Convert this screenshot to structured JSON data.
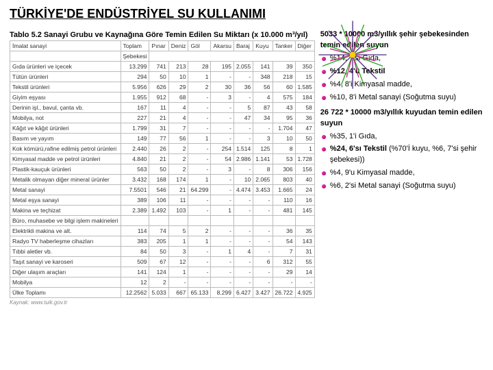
{
  "title": "TÜRKİYE'DE ENDÜSTRİYEL SU KULLANIMI",
  "table_caption": "Tablo 5.2 Sanayi Grubu ve Kaynağına Göre Temin Edilen Su Miktarı (x 10.000 m³/yıl)",
  "columns": [
    "İmalat sanayi",
    "Toplam",
    "Pınar",
    "Deniz",
    "Göl",
    "Akarsu",
    "Baraj",
    "Kuyu",
    "Tanker",
    "Diğer"
  ],
  "subhead": "Şebekesi",
  "rows": [
    [
      "Gıda ürünleri ve içecek",
      "13.299",
      "741",
      "213",
      "28",
      "195",
      "2.055",
      "141",
      "39",
      "350"
    ],
    [
      "Tütün ürünleri",
      "294",
      "50",
      "10",
      "1",
      "-",
      "-",
      "348",
      "218",
      "15"
    ],
    [
      "Tekstil ürünleri",
      "5.956",
      "626",
      "29",
      "2",
      "30",
      "36",
      "56",
      "60",
      "1.585"
    ],
    [
      "Giyim eşyası",
      "1.955",
      "912",
      "68",
      "-",
      "3",
      "-",
      "4",
      "575",
      "184"
    ],
    [
      "Derinin işl., bavul, çanta vb.",
      "167",
      "11",
      "4",
      "-",
      "-",
      "5",
      "87",
      "43",
      "58"
    ],
    [
      "Mobilya, not",
      "227",
      "21",
      "4",
      "-",
      "-",
      "47",
      "34",
      "95",
      "36"
    ],
    [
      "Kâğıt ve kâğıt ürünleri",
      "1.799",
      "31",
      "7",
      "-",
      "-",
      "-",
      "-",
      "1.704",
      "47"
    ],
    [
      "Basım ve yayım",
      "149",
      "77",
      "56",
      "1",
      "-",
      "-",
      "3",
      "10",
      "50"
    ],
    [
      "Kok kömürü,rafine edilmiş petrol ürünleri",
      "2.440",
      "26",
      "2",
      "-",
      "254",
      "1.514",
      "125",
      "8",
      "1"
    ],
    [
      "Kimyasal madde ve petrol ürünleri",
      "4.840",
      "21",
      "2",
      "-",
      "54",
      "2.986",
      "1.141",
      "53",
      "1.728"
    ],
    [
      "Plastik-kauçuk ürünleri",
      "563",
      "50",
      "2",
      "-",
      "3",
      "-",
      "8",
      "306",
      "156"
    ],
    [
      "Metalik olmayan diğer mineral ürünler",
      "3.432",
      "168",
      "174",
      "1",
      "-",
      "10",
      "2.065",
      "803",
      "40"
    ],
    [
      "Metal sanayi",
      "7.5501",
      "546",
      "21",
      "64.299",
      "-",
      "4.474",
      "3.453",
      "1.665",
      "24"
    ],
    [
      "Metal eşya sanayi",
      "389",
      "106",
      "11",
      "-",
      "-",
      "-",
      "-",
      "110",
      "16"
    ],
    [
      "Makina ve teçhizat",
      "2.389",
      "1.492",
      "103",
      "-",
      "1",
      "-",
      "-",
      "481",
      "145"
    ],
    [
      "Büro, muhasebe ve bilgi işlem makineleri",
      "",
      "",
      "",
      "",
      "",
      "",
      "",
      "",
      ""
    ],
    [
      "Elektrikli makina ve alt.",
      "114",
      "74",
      "5",
      "2",
      "-",
      "-",
      "-",
      "36",
      "35"
    ],
    [
      "Radyo TV haberleşme cihazları",
      "383",
      "205",
      "1",
      "1",
      "-",
      "-",
      "-",
      "54",
      "143"
    ],
    [
      "Tıbbi aletler vb.",
      "84",
      "50",
      "3",
      "-",
      "1",
      "4",
      "-",
      "7",
      "31"
    ],
    [
      "Taşıt sanayi ve karoseri",
      "509",
      "67",
      "12",
      "-",
      "-",
      "-",
      "6",
      "312",
      "55"
    ],
    [
      "Diğer ulaşım araçları",
      "141",
      "124",
      "1",
      "-",
      "-",
      "-",
      "-",
      "29",
      "14"
    ],
    [
      "Mobilya",
      "12",
      "2",
      "-",
      "-",
      "-",
      "-",
      "-",
      "-",
      "-"
    ],
    [
      "Ülke Toplamı",
      "12.2562",
      "5.033",
      "667",
      "65.133",
      "8.299",
      "6.427",
      "3.427",
      "26.722",
      "4.925"
    ]
  ],
  "source": "Kaynak: www.tuik.gov.tr",
  "right": {
    "h1": "5033 * 10000 m3/yıllık şehir şebekesinden temin edilen suyun",
    "l1": [
      {
        "t": "%14, 7'si  Gıda,",
        "b": false
      },
      {
        "t": "%12, 4'ü Tekstil",
        "b": true
      },
      {
        "t": "%4, 8'i  Kimyasal madde,",
        "b": false
      },
      {
        "t": "%10, 8'i Metal sanayi (Soğutma suyu)",
        "b": false
      }
    ],
    "h2": "26 722 * 10000 m3/yıllık kuyudan temin edilen suyun",
    "l2": [
      {
        "t": "%35, 1'i  Gıda,",
        "b": false
      },
      {
        "t1": "%24, 6'sı Tekstil",
        "t2": " (%70'İ kuyu, %6, 7'si şehir şebekesi))",
        "b": true
      },
      {
        "t": "%4, 9'u  Kimyasal madde,",
        "b": false
      },
      {
        "t": "%6, 2'si Metal sanayi (Soğutma suyu)",
        "b": false
      }
    ]
  },
  "colors": {
    "accent": "#cc0066",
    "fw1": "#4a2a7a",
    "fw2": "#22aa22",
    "fw3": "#cc2288"
  }
}
